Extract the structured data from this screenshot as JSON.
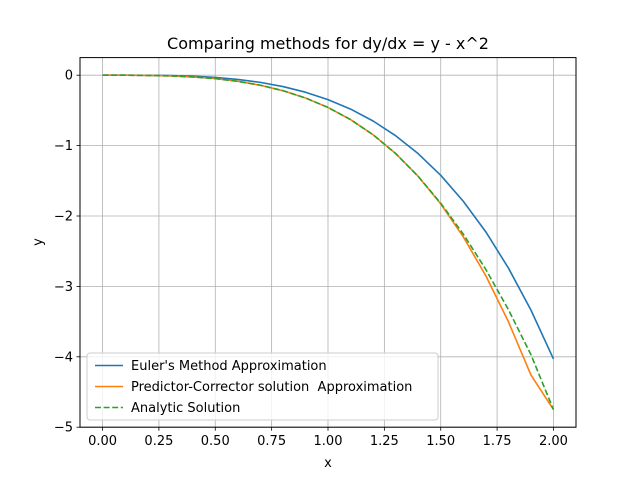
{
  "chart_data": {
    "type": "line",
    "title": "Comparing methods for dy/dx = y - x^2",
    "xlabel": "x",
    "ylabel": "y",
    "xlim": [
      -0.1,
      2.1
    ],
    "ylim": [
      -5.0,
      0.25
    ],
    "xticks": [
      0.0,
      0.25,
      0.5,
      0.75,
      1.0,
      1.25,
      1.5,
      1.75,
      2.0
    ],
    "xtick_labels": [
      "0.00",
      "0.25",
      "0.50",
      "0.75",
      "1.00",
      "1.25",
      "1.50",
      "1.75",
      "2.00"
    ],
    "yticks": [
      0,
      -1,
      -2,
      -3,
      -4,
      -5
    ],
    "ytick_labels": [
      "0",
      "−1",
      "−2",
      "−3",
      "−4",
      "−5"
    ],
    "grid": true,
    "legend_position": "lower-left",
    "x": [
      0.0,
      0.1,
      0.2,
      0.3,
      0.4,
      0.5,
      0.6,
      0.7,
      0.8,
      0.9,
      1.0,
      1.1,
      1.2,
      1.3,
      1.4,
      1.5,
      1.6,
      1.7,
      1.8,
      1.9,
      2.0
    ],
    "series": [
      {
        "name": "Euler's Method Approximation",
        "color": "#1f77b4",
        "dash": "solid",
        "values": [
          0.0,
          0.0,
          -0.001,
          -0.005,
          -0.0145,
          -0.032,
          -0.0602,
          -0.1022,
          -0.1614,
          -0.2416,
          -0.3467,
          -0.4814,
          -0.6505,
          -0.8596,
          -1.1145,
          -1.422,
          -1.7902,
          -2.2252,
          -2.7377,
          -3.3355,
          -4.03
        ]
      },
      {
        "name": "Predictor-Corrector solution  Approximation",
        "color": "#ff7f0e",
        "dash": "solid",
        "values": [
          0.0,
          -0.0003,
          -0.0028,
          -0.0099,
          -0.0242,
          -0.0487,
          -0.0869,
          -0.1425,
          -0.2196,
          -0.3231,
          -0.4581,
          -0.6301,
          -0.8456,
          -1.112,
          -1.4366,
          -1.8279,
          -2.2954,
          -2.8488,
          -3.4989,
          -4.2576,
          -4.75
        ]
      },
      {
        "name": "Analytic Solution",
        "color": "#2ca02c",
        "dash": "dashed",
        "values": [
          0.0,
          -0.0003,
          -0.0028,
          -0.0099,
          -0.0242,
          -0.0487,
          -0.0869,
          -0.1425,
          -0.2196,
          -0.3231,
          -0.4583,
          -0.6303,
          -0.846,
          -1.1127,
          -1.4368,
          -1.8183,
          -2.2567,
          -2.759,
          -3.328,
          -3.9691,
          -4.75
        ]
      }
    ]
  }
}
